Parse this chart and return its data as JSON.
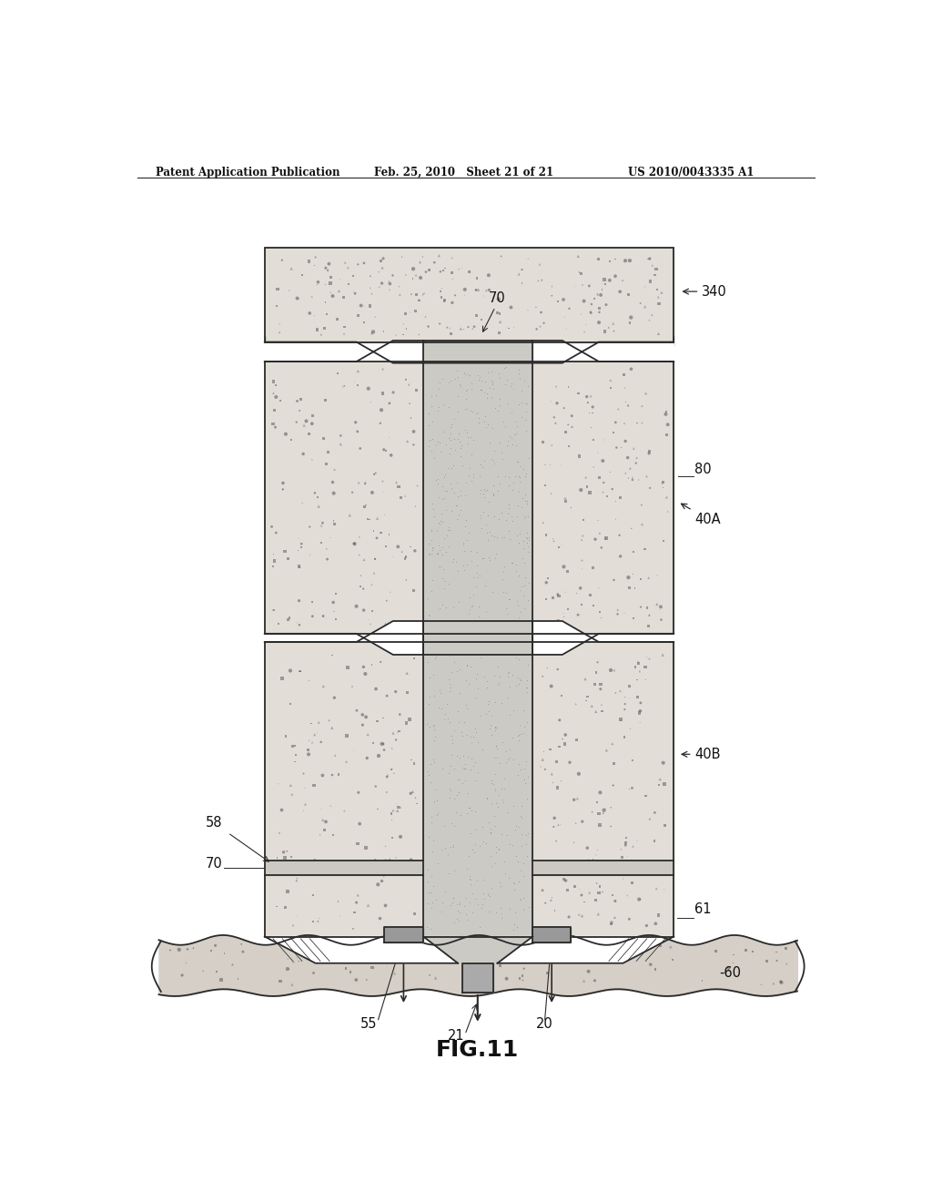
{
  "title_left": "Patent Application Publication",
  "title_mid": "Feb. 25, 2010   Sheet 21 of 21",
  "title_right": "US 2010/0043335 A1",
  "fig_label": "FIG.11",
  "bg_color": "#ffffff",
  "line_color": "#2a2a2a",
  "concrete_color": "#e2ddd7",
  "grout_color": "#cccac5",
  "ground_color": "#d5cfc7"
}
